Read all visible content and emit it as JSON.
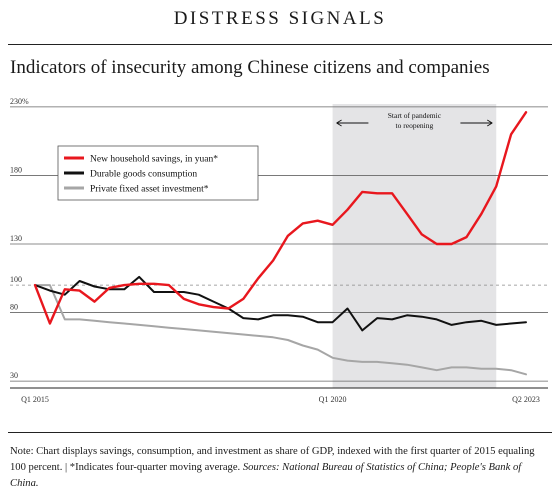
{
  "header": {
    "kicker": "DISTRESS SIGNALS",
    "title": "Indicators of insecurity among Chinese citizens and companies"
  },
  "note": {
    "text": "Note: Chart displays savings, consumption, and investment as share of GDP, indexed with the first quarter of 2015 equaling 100 percent. | *Indicates four-quarter moving average. ",
    "sources": "Sources: National Bureau of Statistics of China; People's Bank of China."
  },
  "colors": {
    "savings": "#e8171e",
    "durable": "#111111",
    "investment": "#a6a6a6",
    "shade": "#e4e4e6",
    "grid": "#666666"
  },
  "chart_data": {
    "type": "line",
    "x": [
      "Q1 2015",
      "Q2 2015",
      "Q3 2015",
      "Q4 2015",
      "Q1 2016",
      "Q2 2016",
      "Q3 2016",
      "Q4 2016",
      "Q1 2017",
      "Q2 2017",
      "Q3 2017",
      "Q4 2017",
      "Q1 2018",
      "Q2 2018",
      "Q3 2018",
      "Q4 2018",
      "Q1 2019",
      "Q2 2019",
      "Q3 2019",
      "Q4 2019",
      "Q1 2020",
      "Q2 2020",
      "Q3 2020",
      "Q4 2020",
      "Q1 2021",
      "Q2 2021",
      "Q3 2021",
      "Q4 2021",
      "Q1 2022",
      "Q2 2022",
      "Q3 2022",
      "Q4 2022",
      "Q1 2023",
      "Q2 2023"
    ],
    "x_tick_labels": [
      {
        "index": 0,
        "label": "Q1 2015"
      },
      {
        "index": 20,
        "label": "Q1 2020"
      },
      {
        "index": 33,
        "label": "Q2 2023"
      }
    ],
    "y_ticks": [
      {
        "value": 30,
        "label": "30"
      },
      {
        "value": 80,
        "label": "80"
      },
      {
        "value": 100,
        "label": "100"
      },
      {
        "value": 130,
        "label": "130"
      },
      {
        "value": 180,
        "label": "180"
      },
      {
        "value": 230,
        "label": "230%"
      }
    ],
    "reference_line": 100,
    "ylim": [
      25,
      235
    ],
    "shaded_region": {
      "from": 20,
      "to": 31,
      "label_line1": "Start of pandemic",
      "label_line2": "to reopening"
    },
    "legend_position": "upper-left",
    "series": [
      {
        "name": "New household savings, in yuan*",
        "color_key": "savings",
        "values": [
          100,
          72,
          97,
          96,
          88,
          98,
          100,
          101,
          101,
          100,
          90,
          86,
          84,
          83,
          90,
          105,
          118,
          136,
          145,
          147,
          144,
          155,
          168,
          167,
          167,
          152,
          137,
          130,
          130,
          135,
          152,
          172,
          210,
          226
        ]
      },
      {
        "name": "Durable goods consumption",
        "color_key": "durable",
        "values": [
          100,
          96,
          93,
          103,
          99,
          97,
          97,
          106,
          95,
          95,
          95,
          93,
          88,
          83,
          76,
          75,
          78,
          78,
          77,
          73,
          73,
          83,
          67,
          76,
          75,
          78,
          77,
          75,
          71,
          73,
          74,
          71,
          72,
          73
        ]
      },
      {
        "name": "Private fixed asset investment*",
        "color_key": "investment",
        "values": [
          100,
          100,
          75,
          75,
          74,
          73,
          72,
          71,
          70,
          69,
          68,
          67,
          66,
          65,
          64,
          63,
          62,
          60,
          56,
          53,
          47,
          45,
          44,
          44,
          43,
          42,
          40,
          38,
          40,
          40,
          39,
          39,
          38,
          35
        ]
      }
    ],
    "extra_points": {
      "durable_last": 70,
      "savings_last": 222
    }
  }
}
